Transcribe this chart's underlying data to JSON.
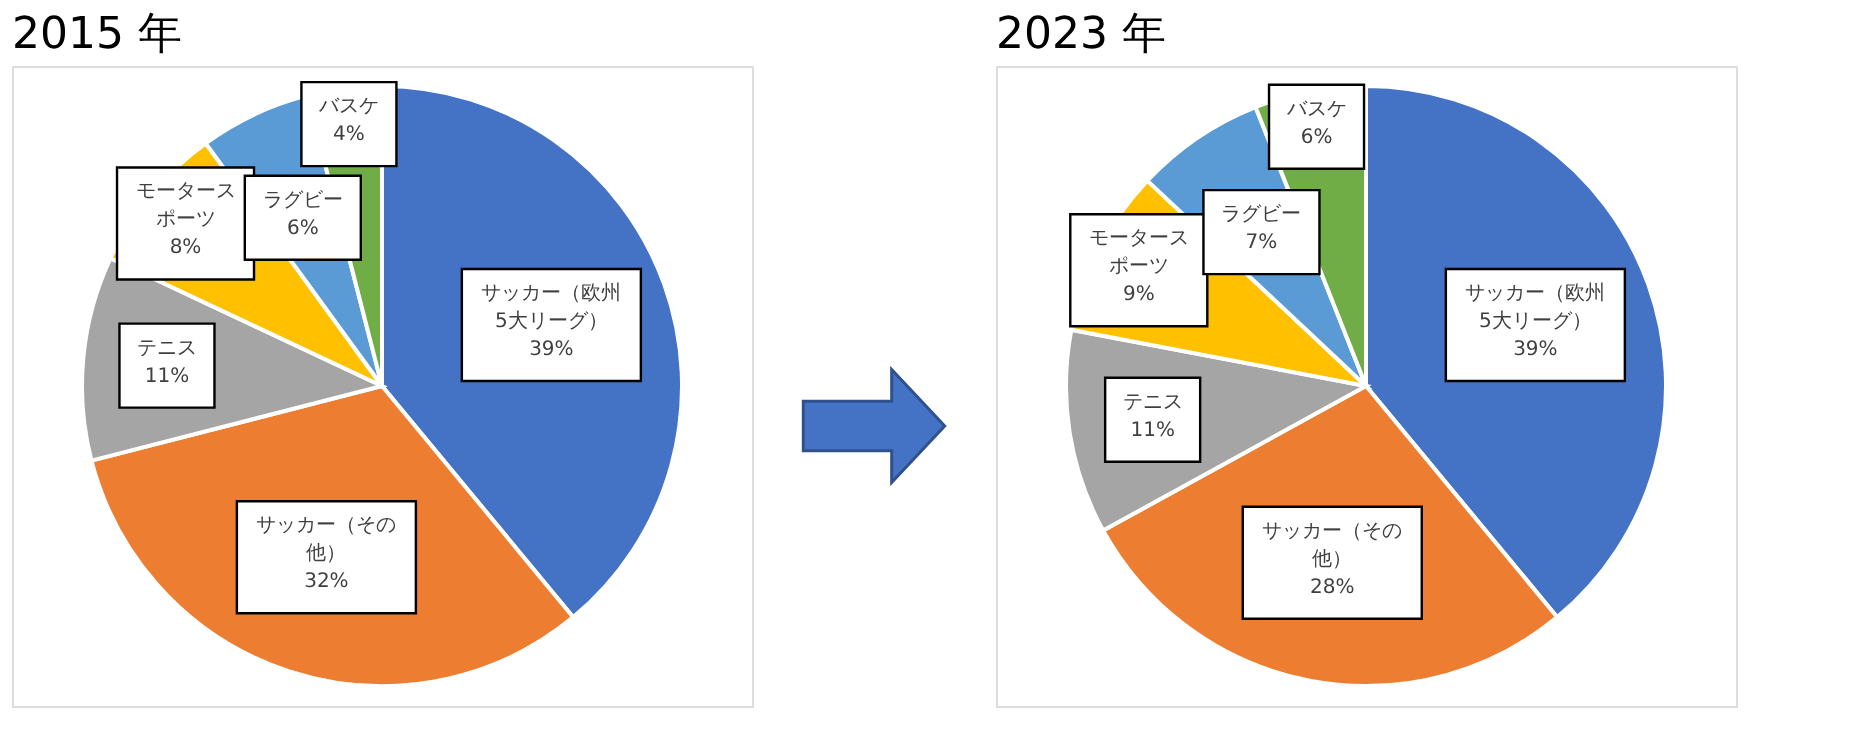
{
  "chart_data": [
    {
      "type": "pie",
      "title": "2015 年",
      "categories": [
        "サッカー（欧州5大リーグ）",
        "サッカー（その他）",
        "テニス",
        "モータースポーツ",
        "ラグビー",
        "バスケ"
      ],
      "values": [
        39,
        32,
        11,
        8,
        6,
        4
      ],
      "value_labels": [
        "39%",
        "32%",
        "11%",
        "8%",
        "6%",
        "4%"
      ],
      "colors": [
        "#4472c4",
        "#ed7d31",
        "#a5a5a5",
        "#ffc000",
        "#5b9bd5",
        "#70ad47"
      ],
      "legend": false
    },
    {
      "type": "pie",
      "title": "2023 年",
      "categories": [
        "サッカー（欧州5大リーグ）",
        "サッカー（その他）",
        "テニス",
        "モータースポーツ",
        "ラグビー",
        "バスケ"
      ],
      "values": [
        39,
        28,
        11,
        9,
        7,
        6
      ],
      "value_labels": [
        "39%",
        "28%",
        "11%",
        "9%",
        "7%",
        "6%"
      ],
      "colors": [
        "#4472c4",
        "#ed7d31",
        "#a5a5a5",
        "#ffc000",
        "#5b9bd5",
        "#70ad47"
      ],
      "legend": false
    }
  ]
}
